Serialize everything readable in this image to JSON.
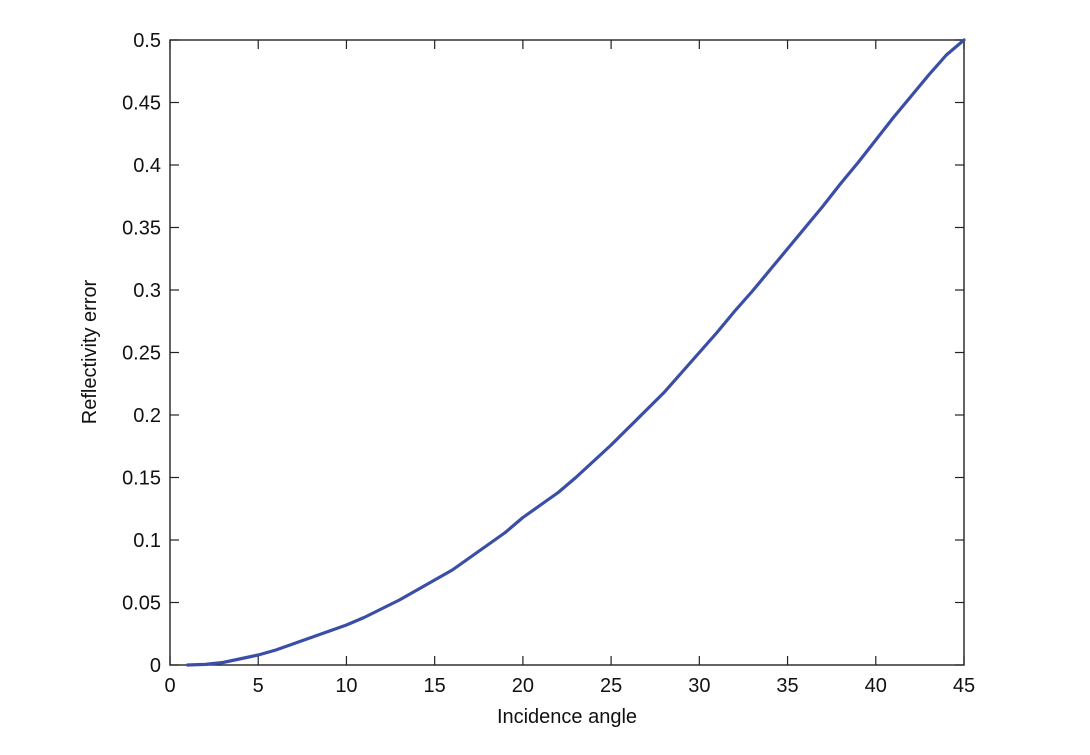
{
  "chart_data": {
    "type": "line",
    "title": "",
    "xlabel": "Incidence angle",
    "ylabel": "Reflectivity error",
    "xlim": [
      0,
      45
    ],
    "ylim": [
      0,
      0.5
    ],
    "xticks": [
      0,
      5,
      10,
      15,
      20,
      25,
      30,
      35,
      40,
      45
    ],
    "xtick_labels": [
      "0",
      "5",
      "10",
      "15",
      "20",
      "25",
      "30",
      "35",
      "40",
      "45"
    ],
    "yticks": [
      0,
      0.05,
      0.1,
      0.15,
      0.2,
      0.25,
      0.3,
      0.35,
      0.4,
      0.45,
      0.5
    ],
    "ytick_labels": [
      "0",
      "0.05",
      "0.1",
      "0.15",
      "0.2",
      "0.25",
      "0.3",
      "0.35",
      "0.4",
      "0.45",
      "0.5"
    ],
    "grid": false,
    "series": [
      {
        "color": "#3a4ea8",
        "x": [
          1,
          2,
          3,
          4,
          5,
          6,
          7,
          8,
          9,
          10,
          11,
          12,
          13,
          14,
          15,
          16,
          17,
          18,
          19,
          20,
          21,
          22,
          23,
          24,
          25,
          26,
          27,
          28,
          29,
          30,
          31,
          32,
          33,
          34,
          35,
          36,
          37,
          38,
          39,
          40,
          41,
          42,
          43,
          44,
          45
        ],
        "y": [
          0.0,
          0.0005,
          0.002,
          0.005,
          0.008,
          0.012,
          0.017,
          0.022,
          0.027,
          0.032,
          0.038,
          0.045,
          0.052,
          0.06,
          0.068,
          0.076,
          0.086,
          0.096,
          0.106,
          0.118,
          0.128,
          0.138,
          0.15,
          0.163,
          0.176,
          0.19,
          0.204,
          0.218,
          0.234,
          0.25,
          0.266,
          0.283,
          0.299,
          0.316,
          0.333,
          0.35,
          0.367,
          0.385,
          0.402,
          0.42,
          0.438,
          0.455,
          0.472,
          0.488,
          0.5
        ]
      }
    ]
  }
}
